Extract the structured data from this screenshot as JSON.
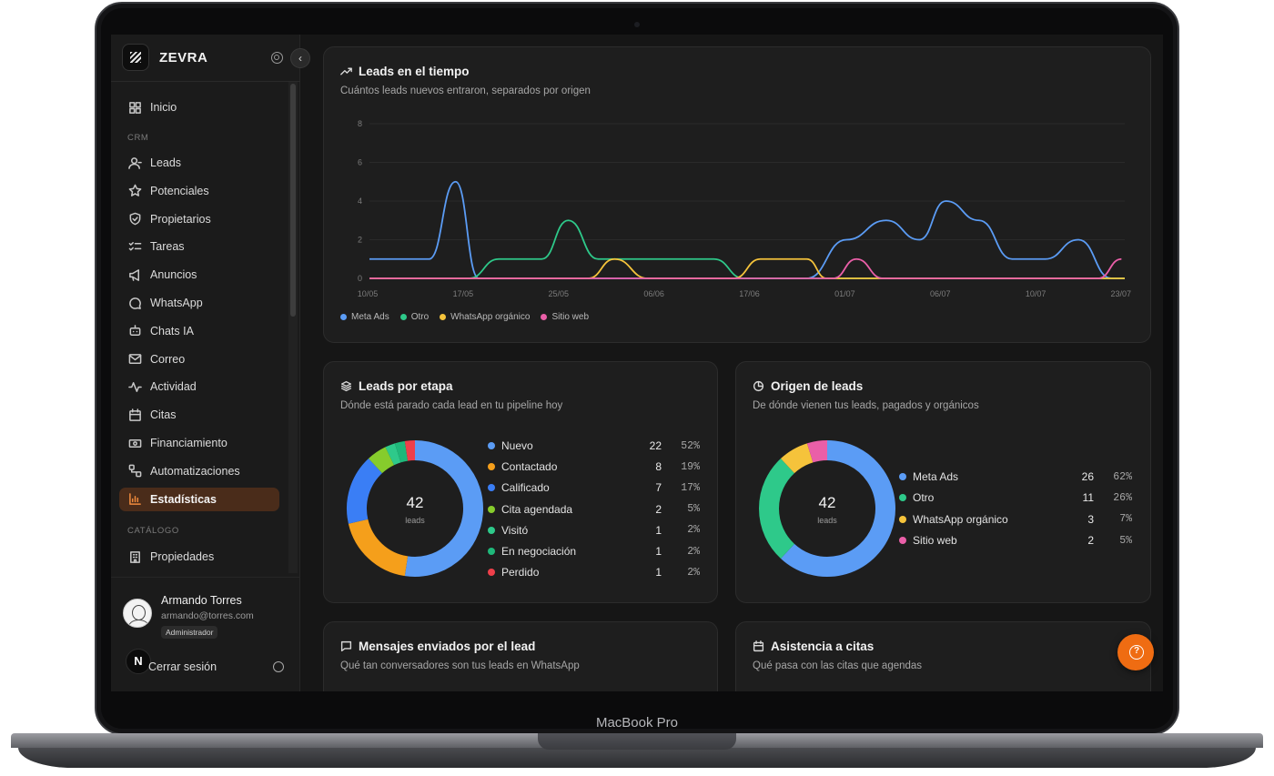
{
  "device": {
    "label": "MacBook Pro"
  },
  "sidebar": {
    "brand": "ZEVRA",
    "home": "Inicio",
    "crm_label": "CRM",
    "items": [
      {
        "label": "Leads",
        "icon": "user-icon"
      },
      {
        "label": "Potenciales",
        "icon": "star-icon"
      },
      {
        "label": "Propietarios",
        "icon": "shield-icon"
      },
      {
        "label": "Tareas",
        "icon": "list-check-icon"
      },
      {
        "label": "Anuncios",
        "icon": "megaphone-icon"
      },
      {
        "label": "WhatsApp",
        "icon": "chat-bubble-icon"
      },
      {
        "label": "Chats IA",
        "icon": "bot-icon"
      },
      {
        "label": "Correo",
        "icon": "mail-icon"
      },
      {
        "label": "Actividad",
        "icon": "activity-icon"
      },
      {
        "label": "Citas",
        "icon": "calendar-icon"
      },
      {
        "label": "Financiamiento",
        "icon": "banknote-icon"
      },
      {
        "label": "Automatizaciones",
        "icon": "workflow-icon"
      },
      {
        "label": "Estadísticas",
        "icon": "bar-chart-icon",
        "active": true
      }
    ],
    "catalog_label": "CATÁLOGO",
    "catalog_items": [
      {
        "label": "Propiedades",
        "icon": "building-icon"
      }
    ],
    "accent_color": "#f08a3c"
  },
  "user": {
    "name": "Armando Torres",
    "email": "armando@torres.com",
    "role": "Administrador",
    "badge": "N",
    "logout": "Cerrar sesión"
  },
  "line_panel": {
    "title": "Leads en el tiempo",
    "subtitle": "Cuántos leads nuevos entraron, separados por origen",
    "chart_data": {
      "type": "line",
      "title": "Leads en el tiempo",
      "ylim": [
        0,
        8
      ],
      "y_ticks": [
        "0",
        "2",
        "4",
        "6",
        "8"
      ],
      "x_tick_labels": [
        "10/05",
        "17/05",
        "25/05",
        "06/06",
        "17/06",
        "01/07",
        "06/07",
        "10/07",
        "23/07"
      ],
      "grid": true,
      "legend_placement": "bottom-left",
      "series": [
        {
          "name": "Meta Ads",
          "color": "#5b9cf5",
          "points": [
            [
              0,
              1
            ],
            [
              0.055,
              1
            ],
            [
              0.09,
              1
            ],
            [
              0.13,
              5
            ],
            [
              0.165,
              0
            ],
            [
              0.64,
              0
            ],
            [
              0.66,
              0
            ],
            [
              0.72,
              2
            ],
            [
              0.78,
              3
            ],
            [
              0.83,
              2
            ],
            [
              0.87,
              4
            ],
            [
              0.92,
              3
            ],
            [
              0.97,
              1
            ],
            [
              1.02,
              1
            ],
            [
              1.07,
              2
            ],
            [
              1.12,
              0
            ],
            [
              1.14,
              0
            ]
          ]
        },
        {
          "name": "Otro",
          "color": "#2ec98a",
          "points": [
            [
              0,
              0
            ],
            [
              0.15,
              0
            ],
            [
              0.195,
              1
            ],
            [
              0.26,
              1
            ],
            [
              0.3,
              3
            ],
            [
              0.345,
              1
            ],
            [
              0.52,
              1
            ],
            [
              0.565,
              0
            ],
            [
              1.14,
              0
            ]
          ]
        },
        {
          "name": "WhatsApp orgánico",
          "color": "#f5c33b",
          "points": [
            [
              0,
              0
            ],
            [
              0.33,
              0
            ],
            [
              0.37,
              1
            ],
            [
              0.42,
              0
            ],
            [
              0.55,
              0
            ],
            [
              0.59,
              1
            ],
            [
              0.66,
              1
            ],
            [
              0.69,
              0
            ],
            [
              1.14,
              0
            ]
          ]
        },
        {
          "name": "Sitio web",
          "color": "#ea5fa8",
          "points": [
            [
              0,
              0
            ],
            [
              0.7,
              0
            ],
            [
              0.735,
              1
            ],
            [
              0.775,
              0
            ],
            [
              1.1,
              0
            ],
            [
              1.135,
              1
            ]
          ]
        }
      ]
    }
  },
  "etapa_panel": {
    "title": "Leads por etapa",
    "subtitle": "Dónde está parado cada lead en tu pipeline hoy",
    "total": "42",
    "total_label": "leads",
    "chart_data": {
      "type": "pie",
      "categories": [
        "Nuevo",
        "Contactado",
        "Calificado",
        "Cita agendada",
        "Visitó",
        "En negociación",
        "Perdido"
      ],
      "values": [
        22,
        8,
        7,
        2,
        1,
        1,
        1
      ],
      "percents": [
        "52%",
        "19%",
        "17%",
        "5%",
        "2%",
        "2%",
        "2%"
      ],
      "colors": [
        "#5b9cf5",
        "#f59f1b",
        "#3a7ef5",
        "#86cc2c",
        "#2ec98a",
        "#1fb87a",
        "#ef3f4a"
      ]
    }
  },
  "origen_panel": {
    "title": "Origen de leads",
    "subtitle": "De dónde vienen tus leads, pagados y orgánicos",
    "total": "42",
    "total_label": "leads",
    "chart_data": {
      "type": "pie",
      "categories": [
        "Meta Ads",
        "Otro",
        "WhatsApp orgánico",
        "Sitio web"
      ],
      "values": [
        26,
        11,
        3,
        2
      ],
      "percents": [
        "62%",
        "26%",
        "7%",
        "5%"
      ],
      "colors": [
        "#5b9cf5",
        "#2ec98a",
        "#f5c33b",
        "#ea5fa8"
      ]
    }
  },
  "mensajes_panel": {
    "title": "Mensajes enviados por el lead",
    "subtitle": "Qué tan conversadores son tus leads en WhatsApp"
  },
  "asistencia_panel": {
    "title": "Asistencia a citas",
    "subtitle": "Qué pasa con las citas que agendas"
  },
  "help": {
    "color": "#ef6c12"
  }
}
